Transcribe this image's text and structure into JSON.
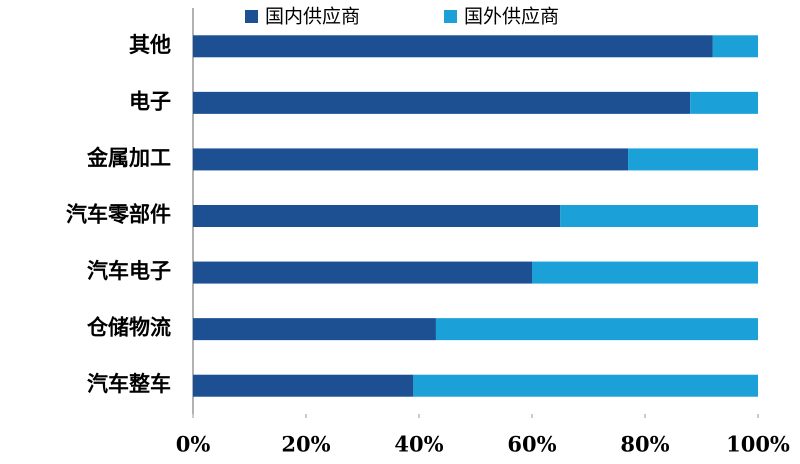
{
  "chart_data": {
    "type": "stacked-barh",
    "categories": [
      "其他",
      "电子",
      "金属加工",
      "汽车零部件",
      "汽车电子",
      "仓储物流",
      "汽车整车"
    ],
    "series": [
      {
        "name": "国内供应商",
        "color": "#1c5092",
        "values": [
          92,
          88,
          77,
          65,
          60,
          43,
          39
        ]
      },
      {
        "name": "国外供应商",
        "color": "#1ba0d8",
        "values": [
          8,
          12,
          23,
          35,
          40,
          57,
          61
        ]
      }
    ],
    "xlim": [
      0,
      100
    ],
    "xticks": [
      {
        "value": 0,
        "label": "0%"
      },
      {
        "value": 20,
        "label": "20%"
      },
      {
        "value": 40,
        "label": "40%"
      },
      {
        "value": 60,
        "label": "60%"
      },
      {
        "value": 80,
        "label": "80%"
      },
      {
        "value": 100,
        "label": "100%"
      }
    ],
    "legend": "top"
  }
}
